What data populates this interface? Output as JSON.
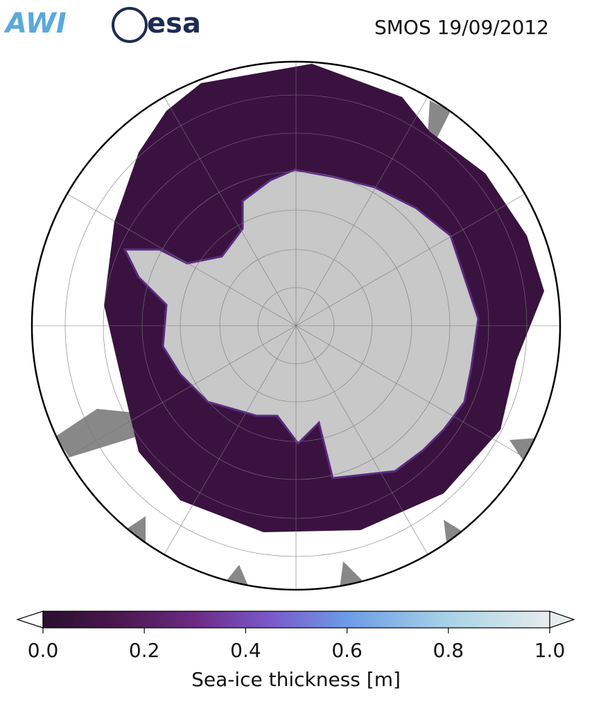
{
  "header": {
    "logos": [
      "AWI",
      "esa"
    ],
    "title": "SMOS 19/09/2012"
  },
  "colorbar": {
    "label": "Sea-ice thickness [m]",
    "lim": [
      0,
      1
    ],
    "ticks": [
      {
        "value": 0,
        "label": "0.0"
      },
      {
        "value": 0.2,
        "label": "0.2"
      },
      {
        "value": 0.4,
        "label": "0.4"
      },
      {
        "value": 0.6,
        "label": "0.6"
      },
      {
        "value": 0.8,
        "label": "0.8"
      },
      {
        "value": 1,
        "label": "1.0"
      }
    ]
  }
}
